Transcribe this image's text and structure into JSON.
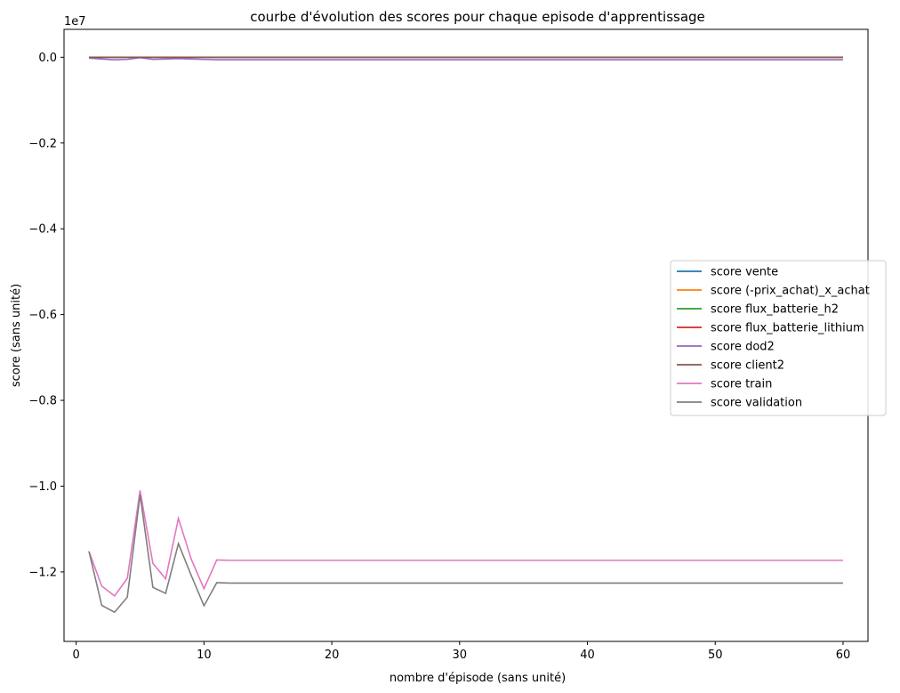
{
  "chart_data": {
    "type": "line",
    "title": "courbe d'évolution des scores pour chaque episode d'apprentissage",
    "xlabel": "nombre d'épisode (sans unité)",
    "ylabel": "score (sans unité)",
    "y_offset_label": "1e7",
    "y_scale": 10000000,
    "xlim": [
      -0.95,
      61.95
    ],
    "ylim": [
      -13620000,
      650000
    ],
    "x_ticks": [
      0,
      10,
      20,
      30,
      40,
      50,
      60
    ],
    "x_tick_labels": [
      "0",
      "10",
      "20",
      "30",
      "40",
      "50",
      "60"
    ],
    "y_ticks": [
      0.0,
      -0.2,
      -0.4,
      -0.6,
      -0.8,
      -1.0,
      -1.2
    ],
    "y_tick_labels": [
      "0.0",
      "−0.2",
      "−0.4",
      "−0.6",
      "−0.8",
      "−1.0",
      "−1.2"
    ],
    "grid": false,
    "legend_position": "center-right",
    "x": [
      1,
      2,
      3,
      4,
      5,
      6,
      7,
      8,
      9,
      10,
      11,
      12,
      13,
      14,
      15,
      16,
      17,
      18,
      19,
      20,
      21,
      22,
      23,
      24,
      25,
      26,
      27,
      28,
      29,
      30,
      31,
      32,
      33,
      34,
      35,
      36,
      37,
      38,
      39,
      40,
      41,
      42,
      43,
      44,
      45,
      46,
      47,
      48,
      49,
      50,
      51,
      52,
      53,
      54,
      55,
      56,
      57,
      58,
      59,
      60
    ],
    "series": [
      {
        "name": "score vente",
        "color": "#1f77b4",
        "values": "const:0"
      },
      {
        "name": "score (-prix_achat)_x_achat",
        "color": "#ff7f0e",
        "values": "const:0"
      },
      {
        "name": "score flux_batterie_h2",
        "color": "#2ca02c",
        "values": "const:0"
      },
      {
        "name": "score flux_batterie_lithium",
        "color": "#d62728",
        "values": "const:0"
      },
      {
        "name": "score dod2",
        "color": "#9467bd",
        "values": "dod2"
      },
      {
        "name": "score client2",
        "color": "#8c564b",
        "values": "const:0"
      },
      {
        "name": "score train",
        "color": "#e377c2",
        "values": "train"
      },
      {
        "name": "score validation",
        "color": "#7f7f7f",
        "values": "validation"
      }
    ],
    "series_values": {
      "dod2_head": [
        -20000,
        -40000,
        -60000,
        -50000,
        -10000,
        -50000,
        -40000,
        -30000,
        -40000,
        -50000
      ],
      "dod2_tail": -60000,
      "train_head": [
        -11520000,
        -12330000,
        -12560000,
        -12150000,
        -10100000,
        -11800000,
        -12160000,
        -10750000,
        -11700000,
        -12390000,
        -11720000
      ],
      "train_tail": -11730000,
      "validation_head": [
        -11520000,
        -12780000,
        -12940000,
        -12590000,
        -10200000,
        -12360000,
        -12500000,
        -11340000,
        -12080000,
        -12790000,
        -12250000
      ],
      "validation_tail": -12260000
    }
  }
}
